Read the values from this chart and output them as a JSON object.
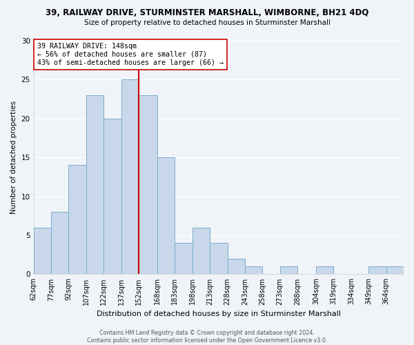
{
  "title": "39, RAILWAY DRIVE, STURMINSTER MARSHALL, WIMBORNE, BH21 4DQ",
  "subtitle": "Size of property relative to detached houses in Sturminster Marshall",
  "xlabel": "Distribution of detached houses by size in Sturminster Marshall",
  "ylabel": "Number of detached properties",
  "bar_color": "#c8d8ea",
  "bar_edge_color": "#7aabcc",
  "bin_labels": [
    "62sqm",
    "77sqm",
    "92sqm",
    "107sqm",
    "122sqm",
    "137sqm",
    "152sqm",
    "168sqm",
    "183sqm",
    "198sqm",
    "213sqm",
    "228sqm",
    "243sqm",
    "258sqm",
    "273sqm",
    "288sqm",
    "304sqm",
    "319sqm",
    "334sqm",
    "349sqm",
    "364sqm"
  ],
  "bin_edges": [
    62,
    77,
    92,
    107,
    122,
    137,
    152,
    168,
    183,
    198,
    213,
    228,
    243,
    258,
    273,
    288,
    304,
    319,
    334,
    349,
    364,
    379
  ],
  "counts": [
    6,
    8,
    14,
    23,
    20,
    25,
    23,
    15,
    4,
    6,
    4,
    2,
    1,
    0,
    1,
    0,
    1,
    0,
    0,
    1,
    1
  ],
  "vline_x": 152,
  "vline_color": "#cc0000",
  "ylim": [
    0,
    30
  ],
  "yticks": [
    0,
    5,
    10,
    15,
    20,
    25,
    30
  ],
  "annotation_title": "39 RAILWAY DRIVE: 148sqm",
  "annotation_line2": "← 56% of detached houses are smaller (87)",
  "annotation_line3": "43% of semi-detached houses are larger (66) →",
  "annotation_box_color": "#ffffff",
  "annotation_box_edge": "#cc0000",
  "footer_text": "Contains HM Land Registry data © Crown copyright and database right 2024.\nContains public sector information licensed under the Open Government Licence v3.0.",
  "background_color": "#f0f4f8"
}
